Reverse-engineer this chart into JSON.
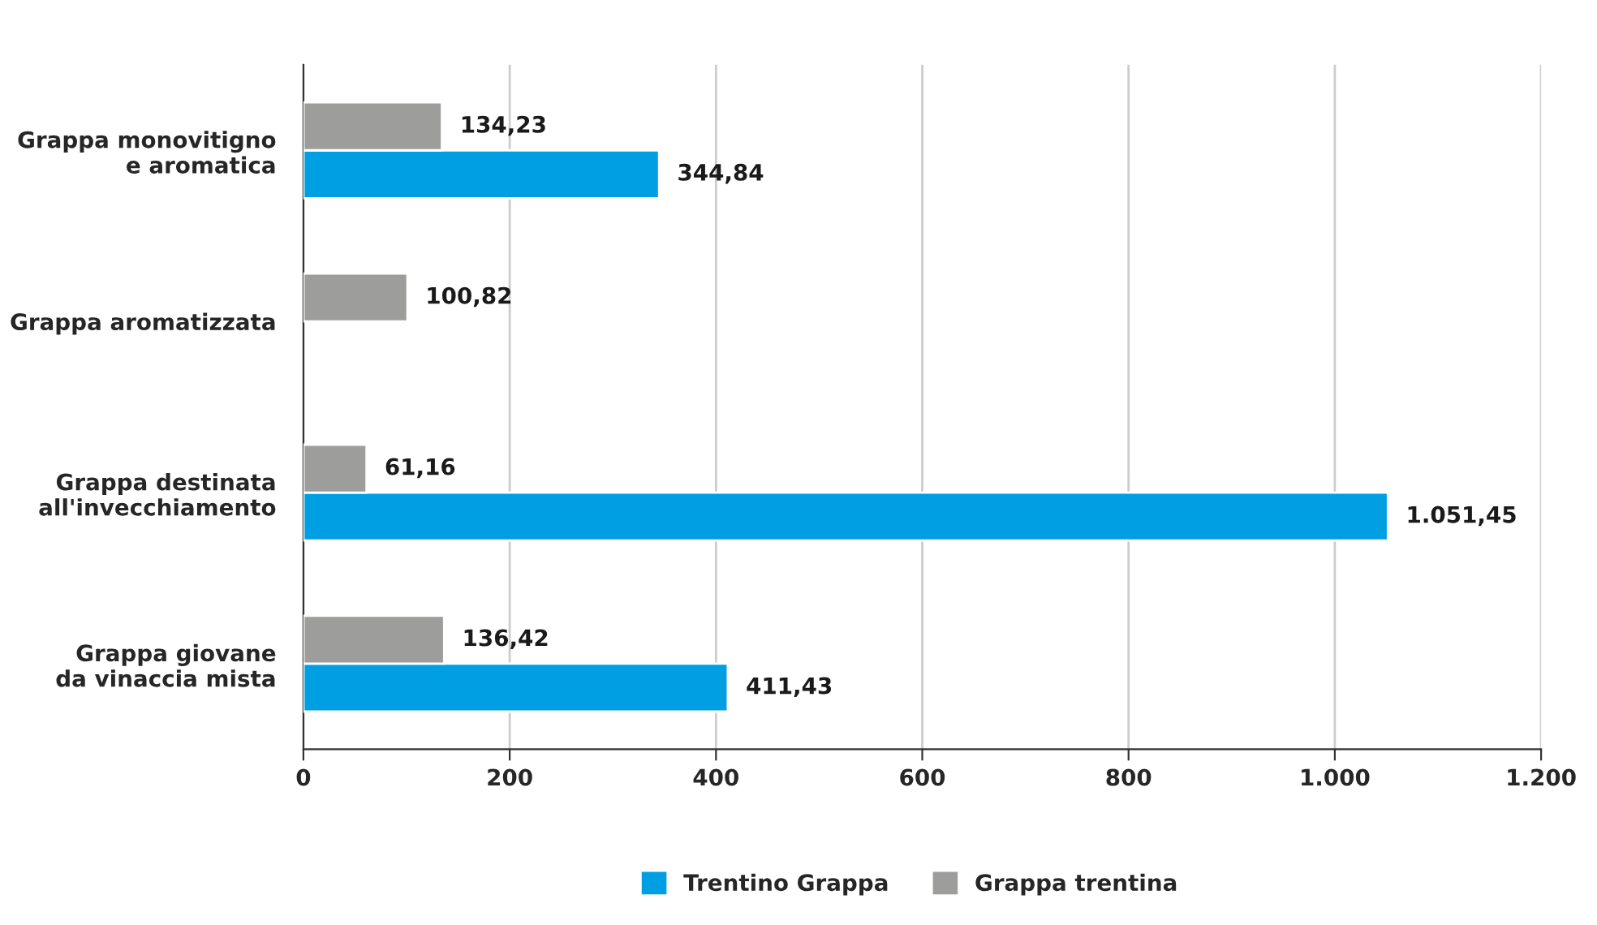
{
  "chart_data": {
    "type": "bar",
    "orientation": "horizontal",
    "categories": [
      "Grappa monovitigno\ne aromatica",
      "Grappa aromatizzata",
      "Grappa destinata\nall'invecchiamento",
      "Grappa giovane\nda vinaccia mista"
    ],
    "series": [
      {
        "name": "Trentino Grappa",
        "color": "#009fe3",
        "values": [
          344.84,
          null,
          1051.45,
          411.43
        ],
        "value_labels": [
          "344,84",
          null,
          "1.051,45",
          "411,43"
        ]
      },
      {
        "name": "Grappa trentina",
        "color": "#9d9d9c",
        "values": [
          134.23,
          100.82,
          61.16,
          136.42
        ],
        "value_labels": [
          "134,23",
          "100,82",
          "61,16",
          "136,42"
        ]
      }
    ],
    "xlim": [
      0,
      1200
    ],
    "xticks": [
      0,
      200,
      400,
      600,
      800,
      {
        "value": 1000,
        "label": "1.000"
      },
      {
        "value": 1200,
        "label": "1.200"
      }
    ],
    "grid": "x",
    "legend": "bottom"
  }
}
